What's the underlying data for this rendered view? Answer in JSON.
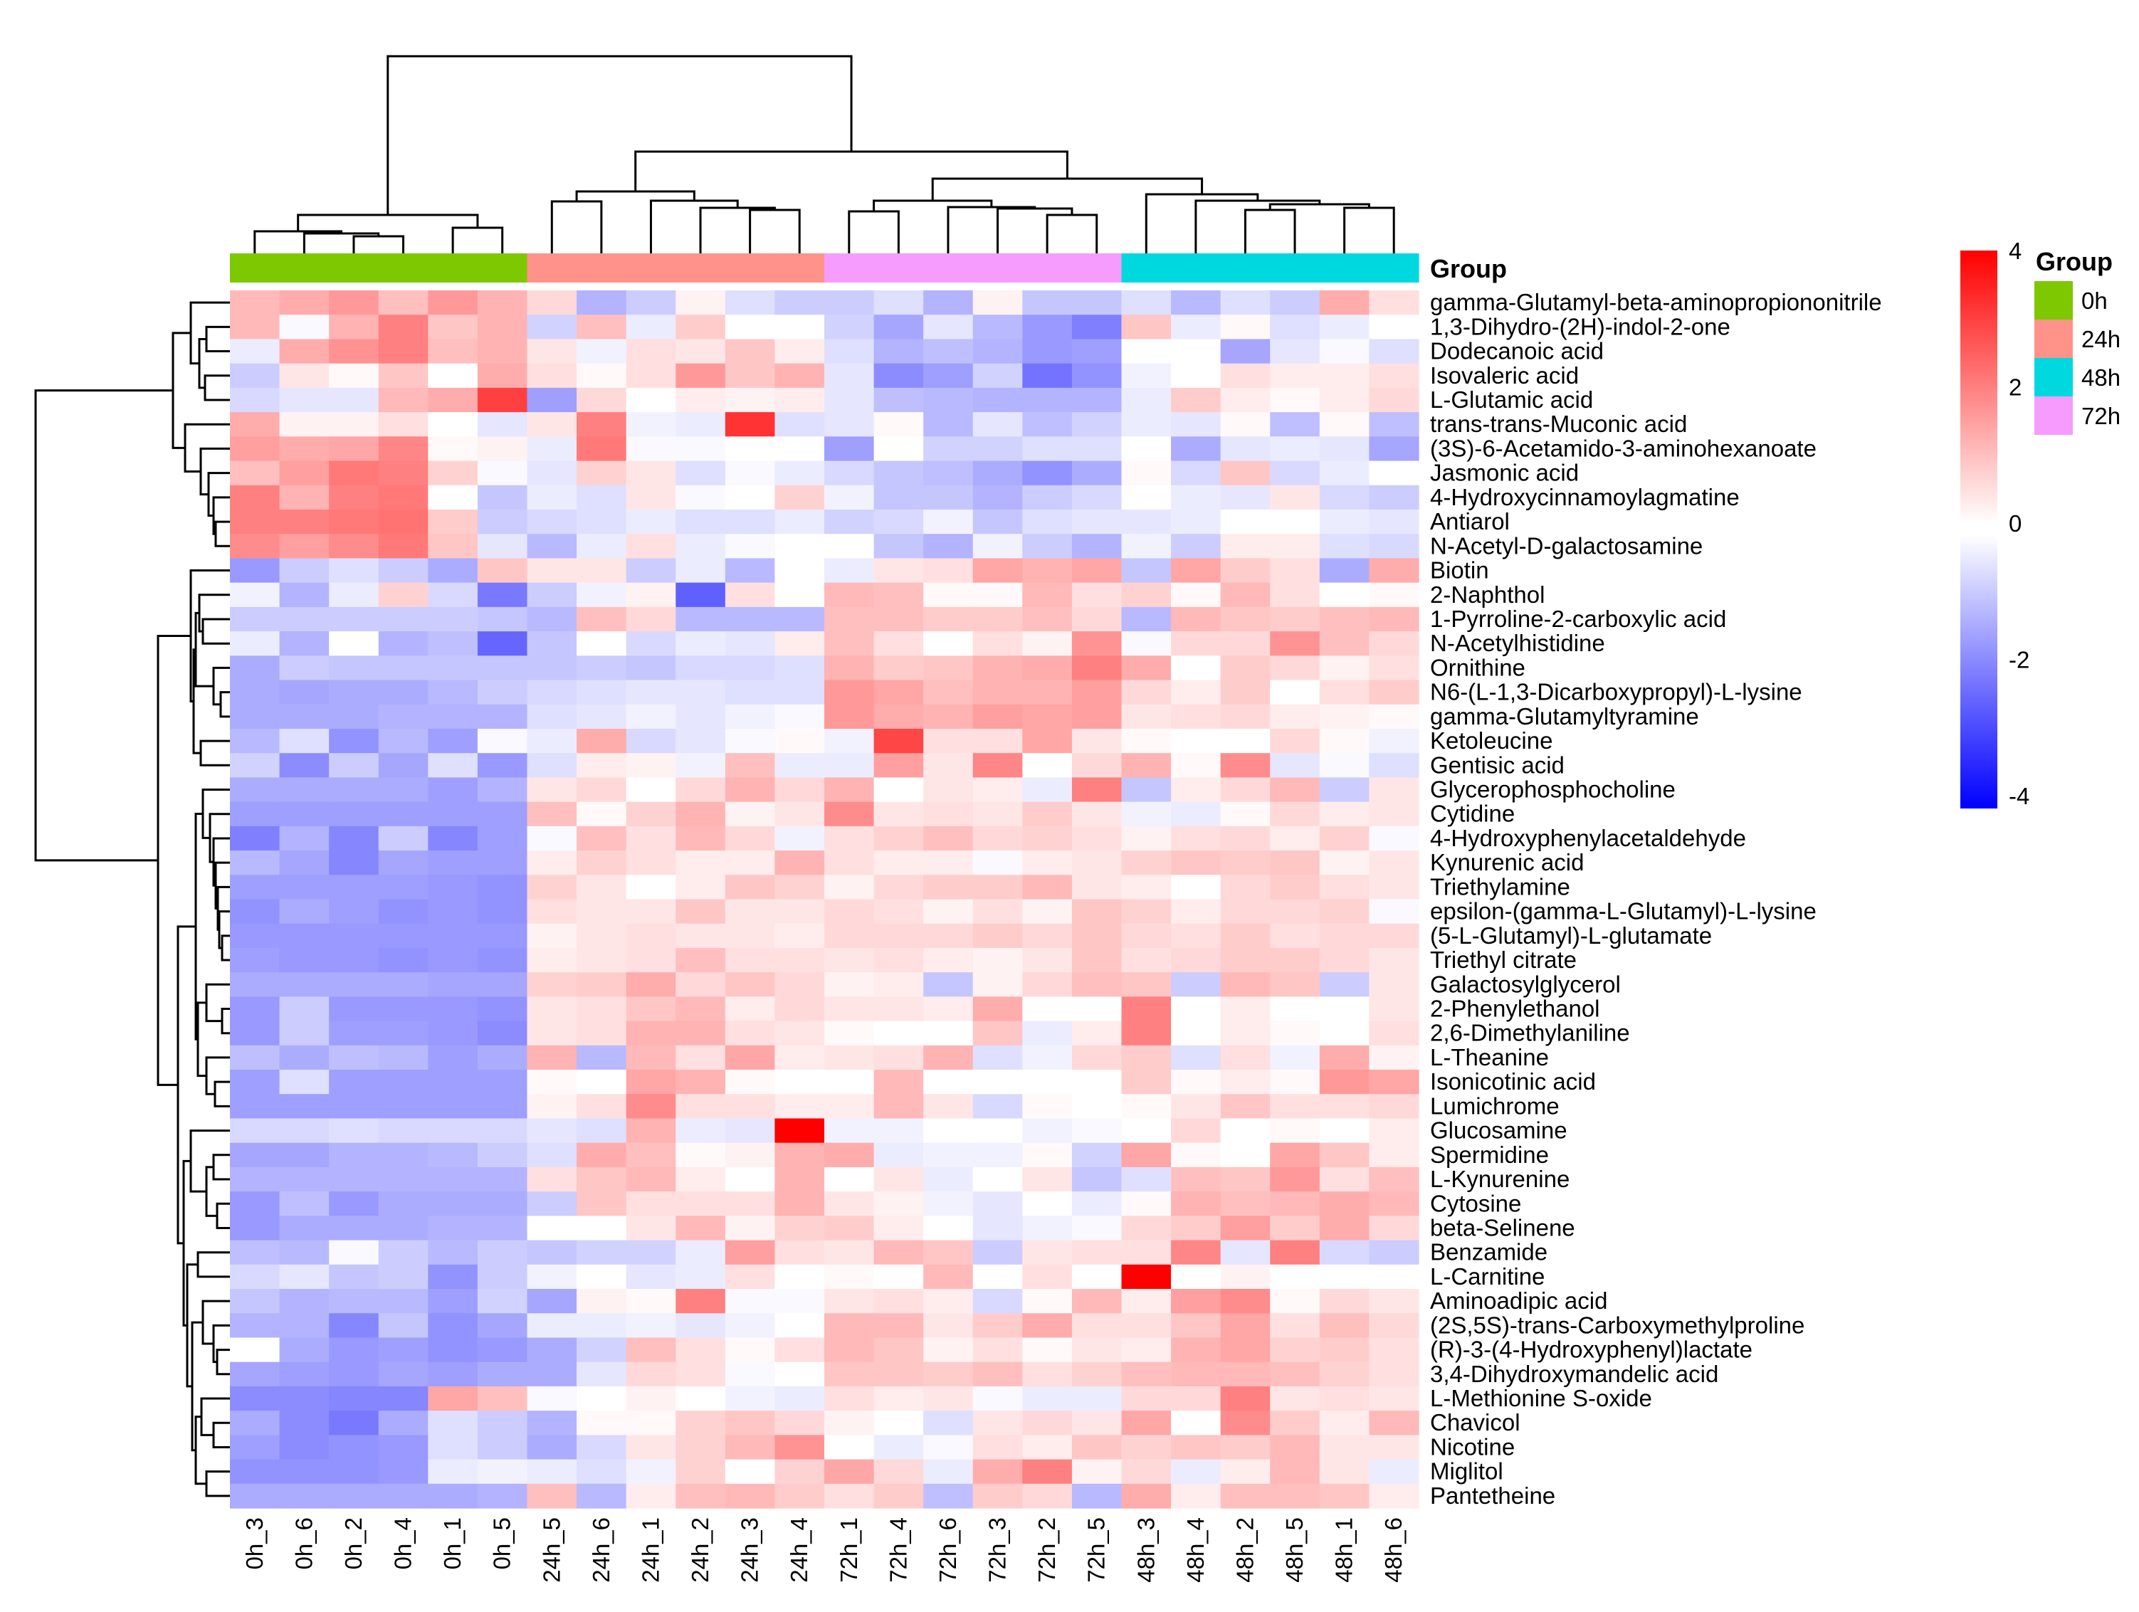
{
  "chart_data": {
    "type": "heatmap",
    "annotation_label": "Group",
    "columns": [
      "0h_3",
      "0h_6",
      "0h_2",
      "0h_4",
      "0h_1",
      "0h_5",
      "24h_5",
      "24h_6",
      "24h_1",
      "24h_2",
      "24h_3",
      "24h_4",
      "72h_1",
      "72h_4",
      "72h_6",
      "72h_3",
      "72h_2",
      "72h_5",
      "48h_3",
      "48h_4",
      "48h_2",
      "48h_5",
      "48h_1",
      "48h_6"
    ],
    "column_groups": [
      "0h",
      "0h",
      "0h",
      "0h",
      "0h",
      "0h",
      "24h",
      "24h",
      "24h",
      "24h",
      "24h",
      "24h",
      "72h",
      "72h",
      "72h",
      "72h",
      "72h",
      "72h",
      "48h",
      "48h",
      "48h",
      "48h",
      "48h",
      "48h"
    ],
    "rows": [
      "gamma-Glutamyl-beta-aminopropiononitrile",
      "1,3-Dihydro-(2H)-indol-2-one",
      "Dodecanoic acid",
      "Isovaleric acid",
      "L-Glutamic acid",
      "trans-trans-Muconic acid",
      "(3S)-6-Acetamido-3-aminohexanoate",
      "Jasmonic acid",
      "4-Hydroxycinnamoylagmatine",
      "Antiarol",
      "N-Acetyl-D-galactosamine",
      "Biotin",
      "2-Naphthol",
      "1-Pyrroline-2-carboxylic acid",
      "N-Acetylhistidine",
      "Ornithine",
      "N6-(L-1,3-Dicarboxypropyl)-L-lysine",
      "gamma-Glutamyltyramine",
      "Ketoleucine",
      "Gentisic acid",
      "Glycerophosphocholine",
      "Cytidine",
      "4-Hydroxyphenylacetaldehyde",
      "Kynurenic acid",
      "Triethylamine",
      "epsilon-(gamma-L-Glutamyl)-L-lysine",
      "(5-L-Glutamyl)-L-glutamate",
      "Triethyl citrate",
      "Galactosylglycerol",
      "2-Phenylethanol",
      "2,6-Dimethylaniline",
      "L-Theanine",
      "Isonicotinic acid",
      "Lumichrome",
      "Glucosamine",
      "Spermidine",
      "L-Kynurenine",
      "Cytosine",
      "beta-Selinene",
      "Benzamide",
      "L-Carnitine",
      "Aminoadipic acid",
      "(2S,5S)-trans-Carboxymethylproline",
      "(R)-3-(4-Hydroxyphenyl)lactate",
      "3,4-Dihydroxymandelic acid",
      "L-Methionine S-oxide",
      "Chavicol",
      "Nicotine",
      "Miglitol",
      "Pantetheine"
    ],
    "values": [
      [
        1.1,
        1.3,
        1.6,
        1.0,
        1.6,
        1.2,
        0.6,
        -1.2,
        -0.8,
        0.2,
        -0.5,
        -0.8,
        -0.8,
        -0.5,
        -1.2,
        0.2,
        -0.9,
        -0.9,
        -0.5,
        -1.1,
        -0.5,
        -0.8,
        1.3,
        0.5
      ],
      [
        1.1,
        -0.1,
        1.2,
        2.0,
        0.9,
        1.2,
        -0.7,
        1.0,
        -0.3,
        0.8,
        0,
        0,
        -0.7,
        -1.4,
        -0.4,
        -1.1,
        -1.6,
        -2.0,
        0.9,
        -0.3,
        0.1,
        -0.5,
        -0.3,
        0
      ],
      [
        -0.3,
        1.3,
        1.7,
        2.0,
        1.0,
        1.2,
        0.4,
        -0.2,
        0.5,
        0.4,
        0.9,
        0.3,
        -0.5,
        -1.2,
        -1.0,
        -1.2,
        -1.6,
        -1.5,
        0,
        0,
        -1.4,
        -0.4,
        -0.1,
        -0.5
      ],
      [
        -0.8,
        0.4,
        0.1,
        0.9,
        0,
        1.3,
        0.5,
        0.1,
        0.5,
        1.6,
        0.9,
        1.2,
        -0.4,
        -1.8,
        -1.5,
        -0.7,
        -2.2,
        -1.7,
        -0.2,
        0,
        0.5,
        0.3,
        0.3,
        0.5
      ],
      [
        -0.6,
        -0.4,
        -0.4,
        1.1,
        1.3,
        3.0,
        -1.5,
        0.6,
        0,
        0.3,
        0.2,
        0.3,
        -0.4,
        -1.0,
        -1.1,
        -1.2,
        -1.2,
        -1.2,
        -0.3,
        0.8,
        0.3,
        0.1,
        0.3,
        0.6
      ],
      [
        1.3,
        0.2,
        0.2,
        0.5,
        0,
        -0.4,
        0.4,
        2.0,
        -0.2,
        -0.3,
        3.2,
        -0.5,
        -0.4,
        0.1,
        -1.1,
        -0.4,
        -1.0,
        -0.7,
        -0.3,
        -0.4,
        0.1,
        -1.0,
        0.1,
        -1.0
      ],
      [
        1.5,
        1.3,
        1.4,
        1.9,
        0.1,
        0.2,
        -0.3,
        2.1,
        -0.1,
        -0.1,
        0,
        0,
        -1.5,
        0,
        -0.7,
        -0.7,
        -0.5,
        -0.5,
        0,
        -1.3,
        -0.4,
        -0.3,
        -0.4,
        -1.4
      ],
      [
        1.0,
        1.5,
        2.1,
        2.0,
        0.7,
        -0.1,
        -0.4,
        0.7,
        0.4,
        -0.5,
        -0.1,
        -0.3,
        -0.6,
        -0.9,
        -1.0,
        -1.3,
        -1.7,
        -1.3,
        0.1,
        -0.6,
        0.9,
        -0.6,
        -0.3,
        0
      ],
      [
        2.0,
        1.2,
        2.0,
        2.1,
        0,
        -0.9,
        -0.3,
        -0.5,
        0.4,
        -0.1,
        0,
        0.7,
        -0.2,
        -0.9,
        -0.9,
        -1.2,
        -0.8,
        -0.6,
        0,
        -0.3,
        -0.4,
        0.4,
        -0.6,
        -0.8
      ],
      [
        2.0,
        2.0,
        2.1,
        2.2,
        0.8,
        -0.8,
        -0.6,
        -0.5,
        -0.3,
        -0.5,
        -0.5,
        -0.3,
        -0.7,
        -0.6,
        -0.2,
        -0.9,
        -0.5,
        -0.4,
        -0.4,
        -0.3,
        0,
        0,
        -0.3,
        -0.4
      ],
      [
        1.8,
        1.5,
        1.8,
        2.1,
        0.9,
        -0.4,
        -1.1,
        -0.3,
        0.5,
        -0.3,
        -0.1,
        0,
        0,
        -0.9,
        -1.2,
        -0.2,
        -0.8,
        -1.2,
        -0.2,
        -0.8,
        0.3,
        0.3,
        -0.5,
        -0.6
      ],
      [
        -1.6,
        -0.8,
        -0.5,
        -0.8,
        -1.3,
        0.9,
        0.4,
        0.4,
        -0.8,
        -0.3,
        -1.1,
        0,
        -0.3,
        0.4,
        0.5,
        1.4,
        1.2,
        1.4,
        -0.9,
        1.4,
        0.8,
        0.5,
        -1.3,
        1.3
      ],
      [
        -0.2,
        -1.2,
        -0.3,
        0.7,
        -0.6,
        -2.1,
        -0.8,
        -0.2,
        0.2,
        -2.5,
        0.5,
        0,
        1.1,
        1.0,
        0.1,
        0.1,
        1.1,
        0.5,
        0.7,
        0.1,
        1.1,
        0.5,
        0,
        0.1
      ],
      [
        -0.8,
        -0.8,
        -0.8,
        -0.8,
        -0.8,
        -0.9,
        -1.1,
        1.0,
        0.6,
        -1.1,
        -1.1,
        -1.1,
        1.0,
        1.0,
        0.8,
        0.8,
        1.0,
        0.6,
        -1.1,
        1.1,
        0.9,
        0.8,
        1.0,
        1.1
      ],
      [
        -0.3,
        -1.2,
        0,
        -1.2,
        -1.0,
        -2.4,
        -0.9,
        0,
        -0.6,
        -0.3,
        -0.4,
        0.3,
        1.0,
        0.5,
        0,
        0.5,
        0.2,
        1.7,
        -0.1,
        0.6,
        0.6,
        1.7,
        1.0,
        0.6
      ],
      [
        -1.3,
        -0.8,
        -0.9,
        -0.9,
        -0.9,
        -0.9,
        -0.9,
        -0.8,
        -0.9,
        -0.6,
        -0.6,
        -0.5,
        1.2,
        0.8,
        0.9,
        1.2,
        1.3,
        2.0,
        1.3,
        0,
        0.8,
        0.6,
        0.2,
        0.5
      ],
      [
        -1.3,
        -1.4,
        -1.3,
        -1.3,
        -1.1,
        -0.8,
        -0.6,
        -0.5,
        -0.4,
        -0.4,
        -0.5,
        -0.5,
        1.6,
        1.4,
        1.0,
        1.2,
        1.2,
        1.5,
        0.6,
        0.3,
        0.8,
        0,
        0.5,
        0.8
      ],
      [
        -1.3,
        -1.3,
        -1.3,
        -1.2,
        -1.2,
        -1.2,
        -0.5,
        -0.4,
        -0.2,
        -0.4,
        -0.2,
        -0.1,
        1.6,
        1.3,
        1.2,
        1.5,
        1.4,
        1.5,
        0.4,
        0.5,
        0.6,
        0.3,
        0.2,
        0.1
      ],
      [
        -1.1,
        -0.5,
        -1.7,
        -1.1,
        -1.5,
        -0.1,
        -0.3,
        1.3,
        -0.6,
        -0.4,
        -0.1,
        0.1,
        -0.2,
        2.9,
        0.5,
        0.5,
        1.4,
        0.4,
        0.1,
        0,
        0,
        0.6,
        0.1,
        -0.2
      ],
      [
        -0.7,
        -1.8,
        -0.8,
        -1.4,
        -0.5,
        -1.6,
        -0.5,
        0.3,
        0.2,
        -0.2,
        1.0,
        -0.3,
        -0.3,
        1.5,
        0.4,
        1.9,
        0,
        0.6,
        1.2,
        0.1,
        1.8,
        -0.4,
        -0.1,
        -0.5
      ],
      [
        -1.3,
        -1.3,
        -1.3,
        -1.3,
        -1.5,
        -1.2,
        0.4,
        0.6,
        0,
        0.6,
        1.2,
        0.6,
        1.2,
        0,
        0.4,
        0.3,
        -0.3,
        2.0,
        -0.9,
        0.3,
        0.6,
        1.1,
        -0.8,
        0.4
      ],
      [
        -1.5,
        -1.5,
        -1.5,
        -1.5,
        -1.5,
        -1.5,
        1.0,
        0.1,
        0.7,
        1.2,
        0.2,
        0.4,
        1.8,
        0.4,
        0.5,
        0.4,
        0.8,
        0.4,
        -0.2,
        -0.3,
        0.1,
        0.6,
        0.3,
        0.4
      ],
      [
        -2.0,
        -1.2,
        -1.9,
        -0.8,
        -1.9,
        -1.5,
        -0.1,
        1.0,
        0.5,
        1.1,
        0.6,
        -0.2,
        0.5,
        0.7,
        1.0,
        0.6,
        0.7,
        0.5,
        0.2,
        0.5,
        0.6,
        0.3,
        0.7,
        -0.1
      ],
      [
        -1.1,
        -1.4,
        -1.9,
        -1.4,
        -1.5,
        -1.5,
        0.3,
        0.7,
        0.5,
        0.3,
        0.3,
        1.2,
        0.5,
        0.3,
        0.3,
        -0.1,
        0.3,
        0.4,
        0.7,
        0.9,
        0.8,
        0.9,
        0.2,
        0.4
      ],
      [
        -1.5,
        -1.5,
        -1.5,
        -1.5,
        -1.6,
        -1.7,
        0.7,
        0.4,
        0,
        0.3,
        0.9,
        0.7,
        0.2,
        0.6,
        0.8,
        0.8,
        1.1,
        0.4,
        0.3,
        0,
        0.6,
        0.8,
        0.5,
        0.4
      ],
      [
        -1.7,
        -1.3,
        -1.5,
        -1.7,
        -1.6,
        -1.7,
        0.5,
        0.4,
        0.4,
        0.9,
        0.4,
        0.4,
        0.6,
        0.5,
        0.2,
        0.5,
        0.2,
        0.9,
        0.7,
        0.3,
        0.6,
        0.6,
        0.7,
        -0.1
      ],
      [
        -1.6,
        -1.6,
        -1.6,
        -1.6,
        -1.6,
        -1.6,
        0.2,
        0.4,
        0.5,
        0.4,
        0.4,
        0.3,
        0.6,
        0.6,
        0.6,
        0.8,
        0.6,
        0.9,
        0.6,
        0.5,
        0.8,
        0.5,
        0.6,
        0.6
      ],
      [
        -1.5,
        -1.6,
        -1.6,
        -1.7,
        -1.6,
        -1.7,
        0.3,
        0.4,
        0.5,
        1.0,
        0.5,
        0.5,
        0.4,
        0.5,
        0.3,
        0.2,
        0.4,
        0.9,
        0.5,
        0.6,
        0.8,
        0.8,
        0.6,
        0.4
      ],
      [
        -1.3,
        -1.3,
        -1.3,
        -1.3,
        -1.4,
        -1.4,
        0.7,
        0.8,
        1.3,
        0.6,
        0.9,
        0.6,
        0.2,
        0.3,
        -0.9,
        0.2,
        0.6,
        1.0,
        0.9,
        -0.8,
        1.1,
        0.9,
        -0.8,
        0.4
      ],
      [
        -1.6,
        -0.8,
        -1.6,
        -1.6,
        -1.6,
        -1.7,
        0.4,
        0.5,
        0.9,
        1.1,
        0.3,
        0.6,
        0.4,
        0.4,
        0.3,
        1.3,
        0,
        0,
        2.0,
        0,
        0.3,
        0,
        0,
        0.4
      ],
      [
        -1.6,
        -0.8,
        -1.5,
        -1.5,
        -1.6,
        -1.8,
        0.4,
        0.5,
        1.2,
        1.2,
        0.5,
        0.4,
        0.1,
        0,
        0,
        0.9,
        -0.3,
        0.3,
        2.0,
        0,
        0.3,
        0.1,
        0,
        0.5
      ],
      [
        -1.0,
        -1.3,
        -1.0,
        -1.1,
        -1.5,
        -1.3,
        1.2,
        -1.1,
        1.1,
        0.5,
        1.4,
        0.3,
        0.4,
        0.5,
        1.2,
        -0.5,
        -0.2,
        0.6,
        0.8,
        -0.5,
        0.5,
        -0.2,
        1.3,
        0.2
      ],
      [
        -1.5,
        -0.5,
        -1.5,
        -1.5,
        -1.5,
        -1.5,
        0.1,
        0,
        1.4,
        1.2,
        0.1,
        0,
        0,
        1.1,
        0,
        0,
        0,
        0,
        0.8,
        0.1,
        0.3,
        0.1,
        1.6,
        1.4
      ],
      [
        -1.5,
        -1.5,
        -1.5,
        -1.5,
        -1.5,
        -1.5,
        0.2,
        0.5,
        1.8,
        0.5,
        0.5,
        0.3,
        0.3,
        1.1,
        0.4,
        -0.6,
        0.1,
        0,
        0.1,
        0.4,
        0.9,
        0.5,
        0.5,
        0.6
      ],
      [
        -0.6,
        -0.6,
        -0.5,
        -0.6,
        -0.6,
        -0.6,
        -0.4,
        -0.5,
        1.2,
        -0.3,
        -0.4,
        4.0,
        -0.2,
        -0.2,
        0,
        0,
        -0.2,
        -0.1,
        0,
        0.6,
        0,
        0.1,
        0,
        0.3
      ],
      [
        -1.4,
        -1.4,
        -1.2,
        -1.2,
        -1.1,
        -0.8,
        -0.5,
        1.3,
        1.0,
        0.1,
        0.2,
        1.2,
        1.3,
        -0.3,
        -0.2,
        -0.2,
        0.1,
        -0.7,
        1.4,
        0.1,
        0,
        1.4,
        0.9,
        0.3
      ],
      [
        -1.2,
        -1.2,
        -1.2,
        -1.2,
        -1.2,
        -1.2,
        0.5,
        0.9,
        1.1,
        0.3,
        0,
        1.2,
        0,
        0.4,
        -0.3,
        0,
        0.4,
        -0.9,
        -0.5,
        1.0,
        0.9,
        1.6,
        0.5,
        1.0
      ],
      [
        -1.6,
        -1.0,
        -1.6,
        -1.3,
        -1.3,
        -1.3,
        -0.8,
        0.9,
        0.5,
        0.5,
        0.5,
        1.2,
        0.4,
        0.2,
        -0.2,
        -0.4,
        0,
        -0.3,
        0.1,
        1.2,
        1.0,
        1.1,
        1.3,
        1.1
      ],
      [
        -1.6,
        -1.3,
        -1.3,
        -1.3,
        -1.2,
        -1.2,
        0,
        0,
        0.4,
        1.1,
        0.2,
        0.7,
        0.8,
        0.3,
        0,
        -0.4,
        -0.2,
        -0.1,
        0.6,
        0.8,
        1.5,
        0.8,
        1.3,
        0.6
      ],
      [
        -1.0,
        -1.1,
        -0.1,
        -0.8,
        -1.1,
        -0.8,
        -0.9,
        -0.7,
        -0.7,
        -0.3,
        1.5,
        0.5,
        0.4,
        1.1,
        0.9,
        -0.8,
        0.4,
        0.5,
        0.5,
        1.9,
        -0.4,
        2.0,
        -0.6,
        -0.8
      ],
      [
        -0.6,
        -0.4,
        -0.9,
        -0.8,
        -1.7,
        -0.8,
        -0.2,
        0,
        -0.4,
        -0.3,
        0.5,
        0,
        0.1,
        0,
        1.1,
        0,
        0.5,
        0,
        4.0,
        0,
        0.2,
        0,
        0,
        0
      ],
      [
        -0.9,
        -1.2,
        -1.1,
        -1.1,
        -1.5,
        -0.7,
        -1.4,
        0.2,
        0.1,
        2.0,
        -0.1,
        -0.1,
        0.4,
        0.5,
        0.3,
        -0.6,
        0.1,
        1.1,
        0.3,
        1.5,
        1.8,
        0.1,
        0.6,
        0.4
      ],
      [
        -1.2,
        -1.2,
        -1.9,
        -0.9,
        -1.7,
        -1.4,
        -0.3,
        -0.3,
        -0.2,
        -0.4,
        -0.2,
        0,
        1.1,
        1.1,
        0.4,
        0.8,
        1.3,
        0.5,
        0.5,
        0.9,
        1.4,
        0.5,
        1.0,
        0.6
      ],
      [
        0,
        -1.3,
        -1.6,
        -1.5,
        -1.7,
        -1.6,
        -1.3,
        -0.7,
        1.0,
        0.5,
        0.1,
        0.5,
        1.1,
        0.9,
        0.2,
        0.5,
        0.1,
        0.4,
        0.3,
        1.2,
        1.4,
        0.7,
        0.8,
        0.5
      ],
      [
        -1.4,
        -1.5,
        -1.6,
        -1.4,
        -1.5,
        -1.3,
        -1.3,
        -0.4,
        0.6,
        0.5,
        -0.1,
        0,
        0.9,
        0.9,
        0.8,
        1.0,
        0.5,
        0.7,
        1.0,
        1.1,
        1.1,
        1.0,
        0.7,
        0.5
      ],
      [
        -1.8,
        -1.8,
        -1.9,
        -1.9,
        1.4,
        1.0,
        -0.1,
        0,
        0.2,
        0,
        -0.2,
        -0.3,
        0.5,
        0.3,
        0.4,
        -0.1,
        -0.3,
        -0.3,
        0.6,
        0.6,
        2.0,
        0.4,
        0.5,
        0.4
      ],
      [
        -1.3,
        -1.8,
        -2.1,
        -1.3,
        -0.5,
        -0.8,
        -1.2,
        0.1,
        0.1,
        0.7,
        0.9,
        0.6,
        0.2,
        0,
        -0.5,
        0.4,
        0.6,
        0.4,
        1.4,
        0,
        1.8,
        0.8,
        0.3,
        1.1
      ],
      [
        -1.5,
        -1.8,
        -1.7,
        -1.6,
        -0.5,
        -0.8,
        -1.3,
        -0.6,
        0.4,
        0.7,
        1.1,
        1.7,
        0,
        -0.3,
        -0.1,
        0.5,
        0.3,
        0.9,
        0.7,
        0.9,
        0.8,
        1.1,
        0.4,
        0.4
      ],
      [
        -1.7,
        -1.7,
        -1.7,
        -1.6,
        -0.3,
        -0.2,
        -0.3,
        -0.5,
        -0.2,
        0.7,
        0,
        0.7,
        1.4,
        0.6,
        -0.3,
        1.3,
        2.0,
        0.2,
        0.6,
        -0.3,
        0.3,
        1.1,
        0.4,
        -0.3
      ],
      [
        -1.3,
        -1.3,
        -1.3,
        -1.3,
        -1.3,
        -1.2,
        1.0,
        -1.1,
        0.3,
        1.0,
        1.1,
        0.8,
        0.5,
        0.8,
        -1.0,
        0.8,
        0.6,
        -1.1,
        1.3,
        0.3,
        1.0,
        1.0,
        0.9,
        0.3
      ]
    ],
    "color_scale": {
      "min": -4,
      "max": 4,
      "low_color": "#0000FF",
      "mid_color": "#FFFFFF",
      "high_color": "#FF0000",
      "ticks": [
        "4",
        "2",
        "0",
        "-2",
        "-4"
      ]
    },
    "legend": {
      "title": "Group",
      "placement": "right",
      "items": [
        {
          "label": "0h",
          "color": "#7DC800"
        },
        {
          "label": "24h",
          "color": "#FF9289"
        },
        {
          "label": "48h",
          "color": "#00D8E0"
        },
        {
          "label": "72h",
          "color": "#F69CFF"
        }
      ]
    }
  }
}
